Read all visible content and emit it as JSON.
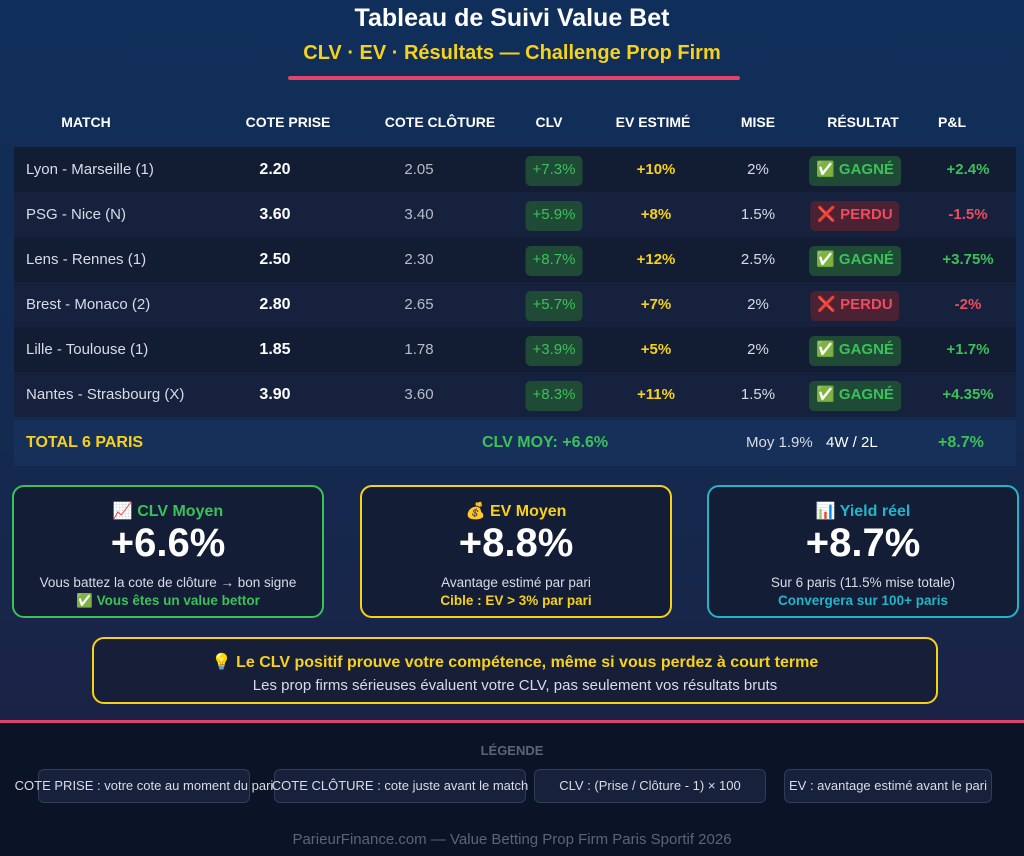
{
  "header": {
    "title": "Tableau de Suivi Value Bet",
    "subtitle": "CLV · EV · Résultats — Challenge Prop Firm"
  },
  "table": {
    "columns": [
      "MATCH",
      "COTE PRISE",
      "COTE CLÔTURE",
      "CLV",
      "EV ESTIMÉ",
      "MISE",
      "RÉSULTAT",
      "P&L"
    ],
    "rows": [
      {
        "match": "Lyon - Marseille (1)",
        "prise": "2.20",
        "cloture": "2.05",
        "clv": "+7.3%",
        "ev": "+10%",
        "mise": "2%",
        "result": "✅ GAGNÉ",
        "status": "won",
        "pl": "+2.4%"
      },
      {
        "match": "PSG - Nice (N)",
        "prise": "3.60",
        "cloture": "3.40",
        "clv": "+5.9%",
        "ev": "+8%",
        "mise": "1.5%",
        "result": "❌ PERDU",
        "status": "lost",
        "pl": "-1.5%"
      },
      {
        "match": "Lens - Rennes (1)",
        "prise": "2.50",
        "cloture": "2.30",
        "clv": "+8.7%",
        "ev": "+12%",
        "mise": "2.5%",
        "result": "✅ GAGNÉ",
        "status": "won",
        "pl": "+3.75%"
      },
      {
        "match": "Brest - Monaco (2)",
        "prise": "2.80",
        "cloture": "2.65",
        "clv": "+5.7%",
        "ev": "+7%",
        "mise": "2%",
        "result": "❌ PERDU",
        "status": "lost",
        "pl": "-2%"
      },
      {
        "match": "Lille - Toulouse (1)",
        "prise": "1.85",
        "cloture": "1.78",
        "clv": "+3.9%",
        "ev": "+5%",
        "mise": "2%",
        "result": "✅ GAGNÉ",
        "status": "won",
        "pl": "+1.7%"
      },
      {
        "match": "Nantes - Strasbourg (X)",
        "prise": "3.90",
        "cloture": "3.60",
        "clv": "+8.3%",
        "ev": "+11%",
        "mise": "1.5%",
        "result": "✅ GAGNÉ",
        "status": "won",
        "pl": "+4.35%"
      }
    ],
    "total": {
      "label": "TOTAL 6 PARIS",
      "clv": "CLV MOY: +6.6%",
      "mise": "Moy 1.9%",
      "record": "4W / 2L",
      "pl": "+8.7%"
    }
  },
  "cards": [
    {
      "title": "📈 CLV Moyen",
      "value": "+6.6%",
      "desc": "Vous battez la cote de clôture → bon signe",
      "note": "✅ Vous êtes un value bettor",
      "color": "#3cc15a"
    },
    {
      "title": "💰 EV Moyen",
      "value": "+8.8%",
      "desc": "Avantage estimé par pari",
      "note": "Cible : EV > 3% par pari",
      "color": "#f7d21a"
    },
    {
      "title": "📊 Yield réel",
      "value": "+8.7%",
      "desc": "Sur 6 paris (11.5% mise totale)",
      "note": "Convergera sur 100+ paris",
      "color": "#23b4c8"
    }
  ],
  "tip": {
    "headline": "💡 Le CLV positif prouve votre compétence, même si vous perdez à court terme",
    "text": "Les prop firms sérieuses évaluent votre CLV, pas seulement vos résultats bruts"
  },
  "legend": {
    "title": "LÉGENDE",
    "items": [
      "COTE PRISE : votre cote au moment du pari",
      "COTE CLÔTURE : cote juste avant le match",
      "CLV : (Prise / Clôture - 1) × 100",
      "EV : avantage estimé avant le pari"
    ]
  },
  "footer": {
    "text": "ParieurFinance.com — Value Betting Prop Firm Paris Sportif 2026"
  }
}
